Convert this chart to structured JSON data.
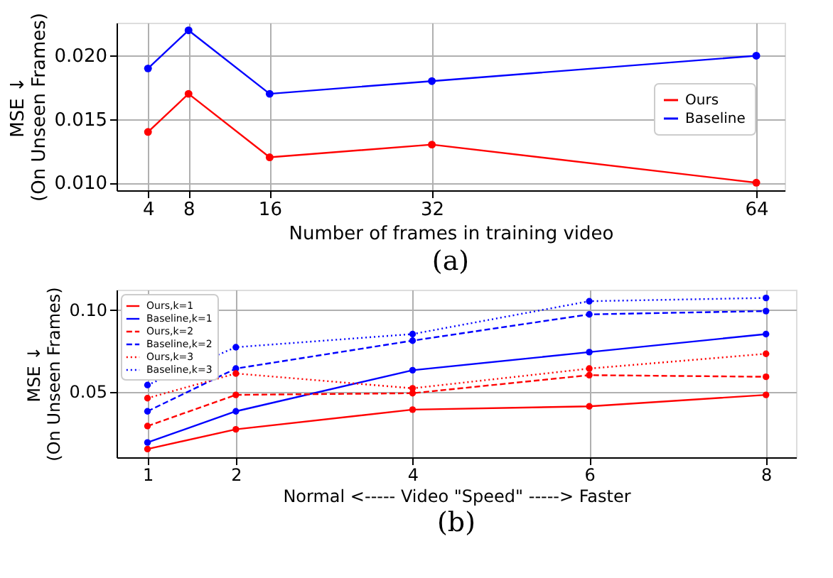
{
  "chart_data": [
    {
      "type": "line",
      "xlabel": "Number of frames in training video",
      "ylabel": "MSE  ↓\n(On Unseen Frames)",
      "annotations": [
        "(a)"
      ],
      "x": [
        4,
        8,
        16,
        32,
        64
      ],
      "xlim": [
        0.9,
        66.8
      ],
      "xticks": [
        4,
        8,
        16,
        32,
        64
      ],
      "ylim": [
        0.0094,
        0.0226
      ],
      "yticks": [
        {
          "value": 0.01,
          "label": "0.010"
        },
        0.015,
        {
          "value": 0.02,
          "label": "0.020"
        }
      ],
      "series": [
        {
          "name": "Ours",
          "color": "#ff0000",
          "values": [
            0.014,
            0.017,
            0.012,
            0.013,
            0.01
          ],
          "line_style": "solid"
        },
        {
          "name": "Baseline",
          "color": "#0000ff",
          "values": [
            0.019,
            0.022,
            0.017,
            0.018,
            0.02
          ],
          "line_style": "solid"
        }
      ],
      "marker": "circle",
      "grid": true,
      "legend": "right"
    },
    {
      "type": "line",
      "xlabel": "Normal <----- Video \"Speed\" -----> Faster",
      "ylabel": "MSE  ↓\n(On Unseen Frames)",
      "annotations": [
        "(b)"
      ],
      "x": [
        1,
        2,
        4,
        6,
        8
      ],
      "xlim": [
        0.65,
        8.34
      ],
      "xticks": [
        1,
        2,
        4,
        6,
        8
      ],
      "ylim": [
        0.01,
        0.112
      ],
      "yticks": [
        0.05,
        {
          "value": 0.1,
          "label": "0.10"
        }
      ],
      "series": [
        {
          "name": "Ours,k=1",
          "color": "#ff0000",
          "values": [
            0.015,
            0.027,
            0.039,
            0.041,
            0.048
          ],
          "line_style": "solid"
        },
        {
          "name": "Baseline,k=1",
          "color": "#0000ff",
          "values": [
            0.019,
            0.038,
            0.063,
            0.074,
            0.085
          ],
          "line_style": "solid"
        },
        {
          "name": "Ours,k=2",
          "color": "#ff0000",
          "values": [
            0.029,
            0.048,
            0.049,
            0.06,
            0.059
          ],
          "line_style": "dashed"
        },
        {
          "name": "Baseline,k=2",
          "color": "#0000ff",
          "values": [
            0.038,
            0.064,
            0.081,
            0.097,
            0.099
          ],
          "line_style": "dashed"
        },
        {
          "name": "Ours,k=3",
          "color": "#ff0000",
          "values": [
            0.046,
            0.061,
            0.052,
            0.064,
            0.073
          ],
          "line_style": "dotted"
        },
        {
          "name": "Baseline,k=3",
          "color": "#0000ff",
          "values": [
            0.054,
            0.077,
            0.085,
            0.105,
            0.107
          ],
          "line_style": "dotted"
        }
      ],
      "marker": "circle",
      "grid": true,
      "legend": "top left"
    }
  ]
}
